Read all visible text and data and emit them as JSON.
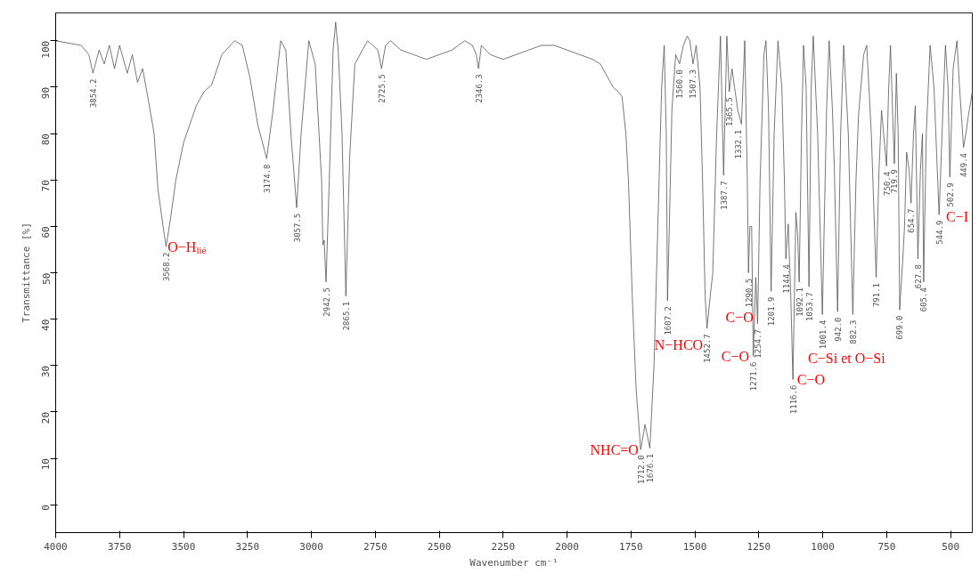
{
  "chart_data": {
    "type": "line",
    "xlabel": "Wavenumber cm⁻¹",
    "ylabel": "Transmittance [%]",
    "xlim": [
      4000,
      415
    ],
    "xticks": [
      4000,
      3750,
      3500,
      3250,
      3000,
      2750,
      2500,
      2250,
      2000,
      1750,
      1500,
      1250,
      1000,
      750,
      500
    ],
    "ylim": [
      -6,
      106
    ],
    "yticks": [
      0,
      10,
      20,
      30,
      40,
      50,
      60,
      70,
      80,
      90,
      100
    ],
    "grid": false,
    "marker": "none",
    "line_style": "solid",
    "color": "#555555",
    "x": [
      4000,
      3950,
      3900,
      3870,
      3854.2,
      3830,
      3810,
      3790,
      3770,
      3750,
      3720,
      3700,
      3680,
      3660,
      3640,
      3615,
      3600,
      3580,
      3568.2,
      3550,
      3530,
      3500,
      3450,
      3420,
      3400,
      3390,
      3350,
      3300,
      3270,
      3240,
      3210,
      3174.8,
      3150,
      3120,
      3100,
      3080,
      3057.5,
      3040,
      3010,
      2985,
      2960,
      2955,
      2950,
      2942.5,
      2930,
      2915,
      2905,
      2895,
      2880,
      2865.1,
      2850,
      2830,
      2800,
      2780,
      2760,
      2740,
      2725.5,
      2710,
      2690,
      2650,
      2600,
      2550,
      2500,
      2450,
      2400,
      2370,
      2355,
      2346.3,
      2335,
      2300,
      2250,
      2200,
      2150,
      2100,
      2050,
      2000,
      1950,
      1900,
      1870,
      1850,
      1820,
      1800,
      1785,
      1770,
      1760,
      1745,
      1730,
      1712.0,
      1695,
      1676.1,
      1660,
      1645,
      1630,
      1620,
      1612,
      1607.2,
      1600,
      1590,
      1575,
      1560.0,
      1545,
      1530,
      1520,
      1507.3,
      1495,
      1480,
      1470,
      1460,
      1452.7,
      1440,
      1430,
      1415,
      1400,
      1387.7,
      1375,
      1365.5,
      1355,
      1345,
      1332.1,
      1318,
      1305,
      1295,
      1290.5,
      1285,
      1278,
      1271.6,
      1262,
      1254.7,
      1245,
      1230,
      1222,
      1212,
      1201.9,
      1190,
      1175,
      1160,
      1150,
      1144.4,
      1135,
      1125,
      1116.6,
      1105,
      1098,
      1092.1,
      1083,
      1075,
      1065,
      1053.7,
      1045,
      1037,
      1020,
      1001.4,
      985,
      975,
      962,
      955,
      942.0,
      930,
      918,
      900,
      882.3,
      870,
      860,
      840,
      828,
      810,
      791.1,
      780,
      770,
      750.4,
      742,
      735,
      727,
      719.9,
      712,
      705,
      699.0,
      688,
      680,
      672,
      662,
      654.7,
      645,
      638,
      627.8,
      618,
      610,
      605.4,
      595,
      580,
      565,
      544.9,
      530,
      520,
      510,
      502.9,
      490,
      475,
      465,
      449.4,
      440,
      430,
      415
    ],
    "values": [
      100,
      99.5,
      99,
      97,
      93,
      98,
      95,
      99,
      94,
      99,
      93,
      97,
      91,
      94,
      88,
      80,
      68,
      60,
      55.6,
      62,
      70,
      78,
      86,
      89,
      90,
      90.5,
      97,
      100,
      99,
      92,
      82,
      74.6,
      85,
      100,
      98,
      80,
      64,
      80,
      100,
      95,
      70,
      56,
      57,
      48,
      70,
      98,
      104,
      98,
      80,
      45,
      75,
      95,
      98,
      100,
      99,
      98,
      94,
      99,
      100,
      98,
      97,
      96,
      97,
      98,
      100,
      99,
      97,
      94,
      99,
      97,
      96,
      97,
      98,
      99,
      99,
      98,
      97,
      96,
      95,
      93,
      90,
      89,
      88,
      80,
      70,
      45,
      25,
      11.9,
      17.3,
      12.2,
      30,
      60,
      90,
      99,
      80,
      44,
      60,
      85,
      97,
      95,
      99,
      101,
      100,
      95,
      99,
      90,
      70,
      45,
      38,
      45,
      50,
      80,
      101,
      71,
      101,
      89,
      94,
      90,
      85,
      82,
      100,
      70,
      50,
      60,
      60,
      32,
      49,
      39,
      70,
      97,
      100,
      85,
      46,
      80,
      100,
      90,
      70,
      53,
      60.5,
      45,
      27,
      63,
      58,
      48,
      80,
      99,
      90,
      47,
      90,
      101,
      80,
      41,
      85,
      100,
      85,
      73,
      41.6,
      80,
      99,
      80,
      41,
      70,
      84,
      97,
      99,
      80,
      49,
      72,
      85,
      73,
      90,
      99,
      85,
      73.5,
      93,
      80,
      42,
      52,
      60,
      76,
      72,
      65,
      80,
      86,
      53,
      72,
      80,
      48,
      80,
      99,
      90,
      62.5,
      85,
      99,
      90,
      70.6,
      94,
      100,
      90,
      77,
      80,
      84,
      89
    ],
    "annotations": [
      {
        "text": "3854.2",
        "x": 3854.2,
        "y": 93
      },
      {
        "text": "3568.2",
        "x": 3568.2,
        "y": 55.6
      },
      {
        "text": "3174.8",
        "x": 3174.8,
        "y": 74.6
      },
      {
        "text": "3057.5",
        "x": 3057.5,
        "y": 64
      },
      {
        "text": "2942.5",
        "x": 2942.5,
        "y": 48
      },
      {
        "text": "2865.1",
        "x": 2865.1,
        "y": 45
      },
      {
        "text": "2725.5",
        "x": 2725.5,
        "y": 94
      },
      {
        "text": "2346.3",
        "x": 2346.3,
        "y": 94
      },
      {
        "text": "1712.0",
        "x": 1712.0,
        "y": 11.9
      },
      {
        "text": "1676.1",
        "x": 1676.1,
        "y": 12.2
      },
      {
        "text": "1607.2",
        "x": 1607.2,
        "y": 44
      },
      {
        "text": "1560.0",
        "x": 1560.0,
        "y": 95
      },
      {
        "text": "1507.3",
        "x": 1507.3,
        "y": 95
      },
      {
        "text": "1452.7",
        "x": 1452.7,
        "y": 38
      },
      {
        "text": "1387.7",
        "x": 1387.7,
        "y": 71
      },
      {
        "text": "1365.5",
        "x": 1365.5,
        "y": 89
      },
      {
        "text": "1332.1",
        "x": 1332.1,
        "y": 85
      },
      {
        "text": "1290.5",
        "x": 1290.5,
        "y": 50
      },
      {
        "text": "1271.6",
        "x": 1271.6,
        "y": 32
      },
      {
        "text": "1254.7",
        "x": 1254.7,
        "y": 39
      },
      {
        "text": "1201.9",
        "x": 1201.9,
        "y": 46
      },
      {
        "text": "1144.4",
        "x": 1144.4,
        "y": 53
      },
      {
        "text": "1116.6",
        "x": 1116.6,
        "y": 27
      },
      {
        "text": "1092.1",
        "x": 1092.1,
        "y": 48
      },
      {
        "text": "1053.7",
        "x": 1053.7,
        "y": 47
      },
      {
        "text": "1001.4",
        "x": 1001.4,
        "y": 41
      },
      {
        "text": "942.0",
        "x": 942.0,
        "y": 41.6
      },
      {
        "text": "882.3",
        "x": 882.3,
        "y": 41
      },
      {
        "text": "791.1",
        "x": 791.1,
        "y": 49
      },
      {
        "text": "750.4",
        "x": 750.4,
        "y": 73
      },
      {
        "text": "719.9",
        "x": 719.9,
        "y": 73.5
      },
      {
        "text": "699.0",
        "x": 699.0,
        "y": 42
      },
      {
        "text": "654.7",
        "x": 654.7,
        "y": 65
      },
      {
        "text": "627.8",
        "x": 627.8,
        "y": 53
      },
      {
        "text": "605.4",
        "x": 605.4,
        "y": 48
      },
      {
        "text": "544.9",
        "x": 544.9,
        "y": 62.5
      },
      {
        "text": "502.9",
        "x": 502.9,
        "y": 70.6
      },
      {
        "text": "449.4",
        "x": 449.4,
        "y": 77
      },
      {
        "text": "O−H$_{lié}$",
        "x": 3568.2,
        "y": 55.6
      },
      {
        "text": "NHC=O",
        "x": 1712.0,
        "y": 11.9
      },
      {
        "text": "N−HCO",
        "x": 1607.2,
        "y": 44
      },
      {
        "text": "C−O",
        "x": 1271.6,
        "y": 32
      },
      {
        "text": "C−O",
        "x": 1201.9,
        "y": 46
      },
      {
        "text": "C−O",
        "x": 1116.6,
        "y": 27
      },
      {
        "text": "C−Si et O−Si",
        "x": 942.0,
        "y": 41.6
      },
      {
        "text": "C−I",
        "x": 544.9,
        "y": 62.5
      }
    ]
  }
}
